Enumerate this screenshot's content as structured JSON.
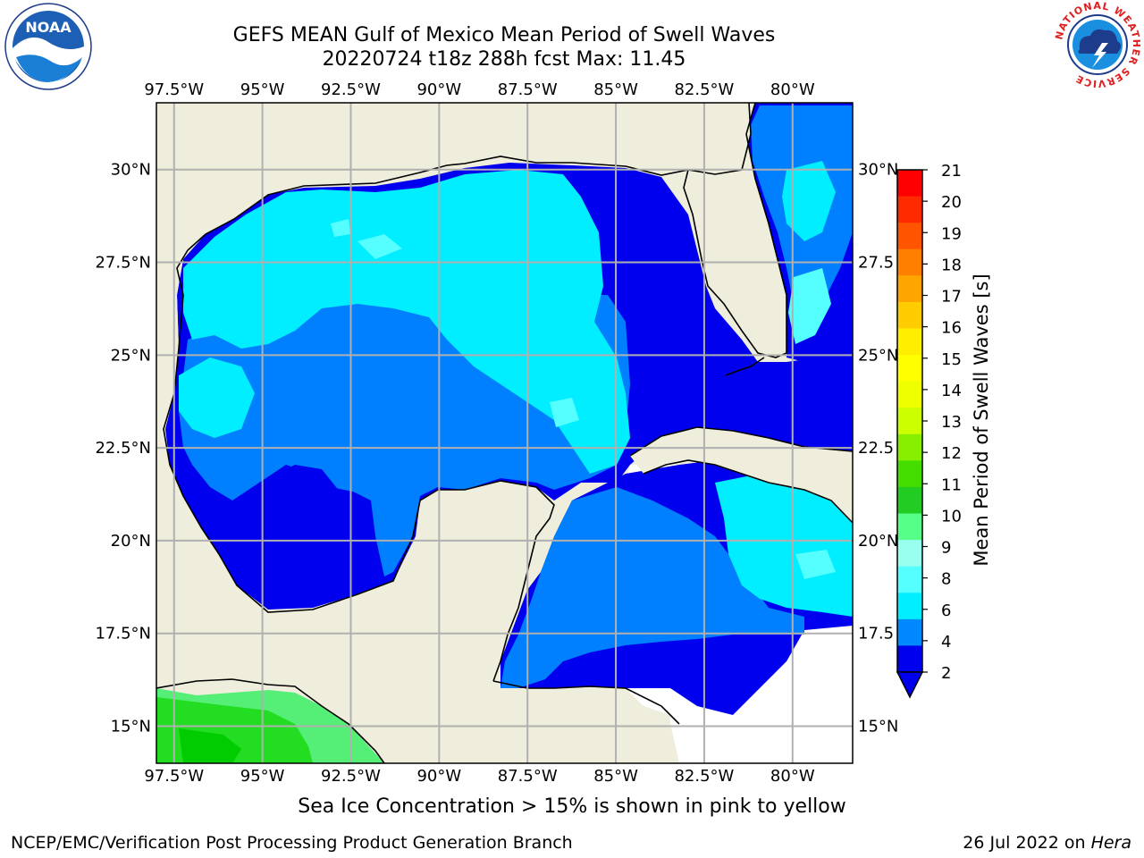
{
  "title": {
    "line1": "GEFS MEAN Gulf of Mexico Mean Period of Swell Waves",
    "line2": "20220724 t18z 288h fcst   Max: 11.45"
  },
  "map": {
    "lon_labels": [
      "97.5°W",
      "95°W",
      "92.5°W",
      "90°W",
      "87.5°W",
      "85°W",
      "82.5°W",
      "80°W"
    ],
    "lon_values": [
      -97.5,
      -95,
      -92.5,
      -90,
      -87.5,
      -85,
      -82.5,
      -80
    ],
    "lat_labels_left": [
      "30°N",
      "27.5°N",
      "25°N",
      "22.5°N",
      "20°N",
      "17.5°N",
      "15°N"
    ],
    "lat_labels_right": [
      "30°N",
      "27.5",
      "25°N",
      "22.5",
      "20°N",
      "17.5",
      "15°N"
    ],
    "lat_values": [
      30,
      27.5,
      25,
      22.5,
      20,
      17.5,
      15
    ],
    "extent": {
      "lon_min": -98.0,
      "lon_max": -78.3,
      "lat_min": 14.0,
      "lat_max": 31.8
    },
    "colors": {
      "land": "#efeedc",
      "grid": "#b0b0b0",
      "coast": "#000000"
    }
  },
  "colorbar": {
    "label": "Mean Period of Swell Waves [s]",
    "ticks": [
      "21",
      "20",
      "19",
      "18",
      "17",
      "16",
      "15",
      "14",
      "13",
      "12",
      "11",
      "10",
      "9",
      "8",
      "6",
      "4",
      "2"
    ],
    "colors": [
      "#ff0000",
      "#ff2a00",
      "#ff5500",
      "#ff7f00",
      "#ffa500",
      "#ffcc00",
      "#ffee00",
      "#ffff00",
      "#eeff00",
      "#ccff00",
      "#88ee00",
      "#44dd00",
      "#22cc22",
      "#55ff88",
      "#99ffee",
      "#55ffff",
      "#00eeff",
      "#0088ff",
      "#0000ee"
    ],
    "extend_color": "#0000ee"
  },
  "footer": {
    "caption": "Sea Ice Concentration > 15% is shown in pink to yellow",
    "credit": "NCEP/EMC/Verification Post Processing Product Generation Branch",
    "date": "26 Jul 2022 on ",
    "host": "Hera"
  },
  "logos": {
    "left_icon": "noaa-logo-icon",
    "left_text": "NOAA",
    "right_icon": "nws-logo-icon",
    "right_text": "NATIONAL WEATHER SERVICE"
  }
}
